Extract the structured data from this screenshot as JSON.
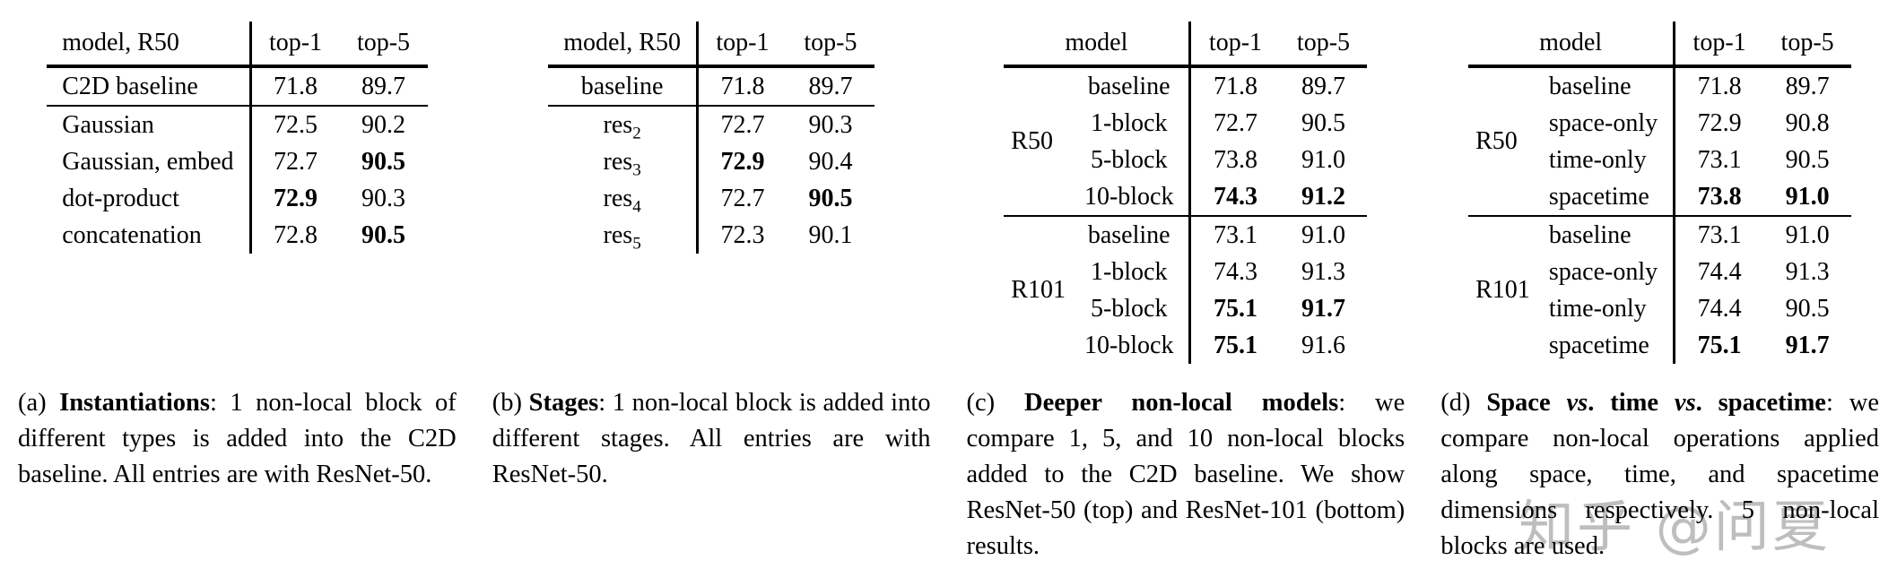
{
  "colors": {
    "background": "#ffffff",
    "text": "#000000",
    "watermark": "#b3b3b3"
  },
  "watermark": {
    "text": "知乎 @问夏"
  },
  "tables": {
    "a": {
      "headers": {
        "model": "model, R50",
        "top1": "top-1",
        "top5": "top-5"
      },
      "rows": [
        {
          "model": "C2D baseline",
          "top1": "71.8",
          "top5": "89.7"
        },
        {
          "model": "Gaussian",
          "top1": "72.5",
          "top5": "90.2"
        },
        {
          "model": "Gaussian, embed",
          "top1": "72.7",
          "top5": "90.5",
          "bold_top5": true
        },
        {
          "model": "dot-product",
          "top1": "72.9",
          "top5": "90.3",
          "bold_top1": true
        },
        {
          "model": "concatenation",
          "top1": "72.8",
          "top5": "90.5",
          "bold_top5": true
        }
      ]
    },
    "b": {
      "headers": {
        "model": "model, R50",
        "top1": "top-1",
        "top5": "top-5"
      },
      "rows": [
        {
          "model": "baseline",
          "top1": "71.8",
          "top5": "89.7"
        },
        {
          "model": "res",
          "model_sub": "2",
          "top1": "72.7",
          "top5": "90.3"
        },
        {
          "model": "res",
          "model_sub": "3",
          "top1": "72.9",
          "top5": "90.4",
          "bold_top1": true
        },
        {
          "model": "res",
          "model_sub": "4",
          "top1": "72.7",
          "top5": "90.5",
          "bold_top5": true
        },
        {
          "model": "res",
          "model_sub": "5",
          "top1": "72.3",
          "top5": "90.1"
        }
      ]
    },
    "c": {
      "headers": {
        "model": "model",
        "top1": "top-1",
        "top5": "top-5"
      },
      "groups": [
        {
          "label": "R50",
          "rows": [
            {
              "model": "baseline",
              "top1": "71.8",
              "top5": "89.7"
            },
            {
              "model": "1-block",
              "top1": "72.7",
              "top5": "90.5"
            },
            {
              "model": "5-block",
              "top1": "73.8",
              "top5": "91.0"
            },
            {
              "model": "10-block",
              "top1": "74.3",
              "top5": "91.2",
              "bold_top1": true,
              "bold_top5": true
            }
          ]
        },
        {
          "label": "R101",
          "rows": [
            {
              "model": "baseline",
              "top1": "73.1",
              "top5": "91.0"
            },
            {
              "model": "1-block",
              "top1": "74.3",
              "top5": "91.3"
            },
            {
              "model": "5-block",
              "top1": "75.1",
              "top5": "91.7",
              "bold_top1": true,
              "bold_top5": true
            },
            {
              "model": "10-block",
              "top1": "75.1",
              "top5": "91.6",
              "bold_top1": true
            }
          ]
        }
      ]
    },
    "d": {
      "headers": {
        "model": "model",
        "top1": "top-1",
        "top5": "top-5"
      },
      "groups": [
        {
          "label": "R50",
          "rows": [
            {
              "model": "baseline",
              "top1": "71.8",
              "top5": "89.7"
            },
            {
              "model": "space-only",
              "top1": "72.9",
              "top5": "90.8"
            },
            {
              "model": "time-only",
              "top1": "73.1",
              "top5": "90.5"
            },
            {
              "model": "spacetime",
              "top1": "73.8",
              "top5": "91.0",
              "bold_top1": true,
              "bold_top5": true
            }
          ]
        },
        {
          "label": "R101",
          "rows": [
            {
              "model": "baseline",
              "top1": "73.1",
              "top5": "91.0"
            },
            {
              "model": "space-only",
              "top1": "74.4",
              "top5": "91.3"
            },
            {
              "model": "time-only",
              "top1": "74.4",
              "top5": "90.5"
            },
            {
              "model": "spacetime",
              "top1": "75.1",
              "top5": "91.7",
              "bold_top1": true,
              "bold_top5": true
            }
          ]
        }
      ]
    }
  },
  "captions": {
    "a": {
      "segments": [
        {
          "t": "(a) "
        },
        {
          "t": "Instantiations",
          "b": true
        },
        {
          "t": ": 1 non-local block of different types is added into the C2D baseline. All entries are with ResNet-50."
        }
      ]
    },
    "b": {
      "segments": [
        {
          "t": "(b) "
        },
        {
          "t": "Stages",
          "b": true
        },
        {
          "t": ": 1 non-local block is added into different stages. All entries are with ResNet-50."
        }
      ]
    },
    "c": {
      "segments": [
        {
          "t": "(c) "
        },
        {
          "t": "Deeper non-local models",
          "b": true
        },
        {
          "t": ": we compare 1, 5, and 10 non-local blocks added to the C2D baseline. We show ResNet-50 (top) and ResNet-101 (bottom) results."
        }
      ]
    },
    "d": {
      "segments": [
        {
          "t": "(d) "
        },
        {
          "t": "Space ",
          "b": true
        },
        {
          "t": "vs",
          "b": true,
          "i": true
        },
        {
          "t": ". time ",
          "b": true
        },
        {
          "t": "vs",
          "b": true,
          "i": true
        },
        {
          "t": ". spacetime",
          "b": true
        },
        {
          "t": ": we compare non-local operations applied along space, time, and spacetime dimensions respectively. 5 non-local blocks are used."
        }
      ]
    }
  }
}
